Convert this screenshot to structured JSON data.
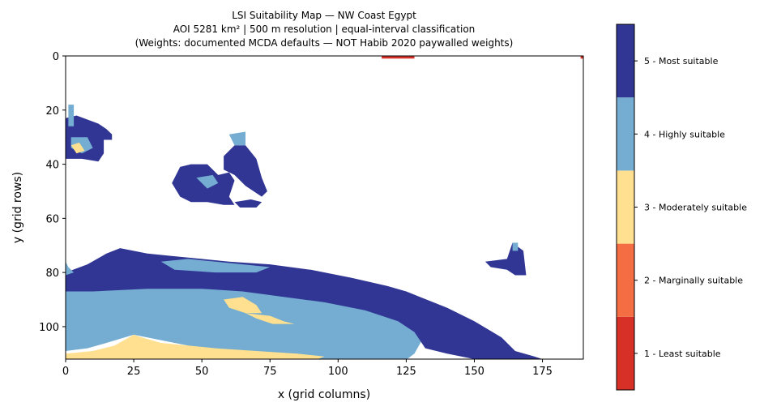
{
  "chart_data": {
    "type": "heatmap",
    "title_lines": [
      "LSI Suitability Map — NW Coast Egypt",
      "AOI 5281 km²  |  500 m resolution  |  equal-interval classification",
      "(Weights: documented MCDA defaults — NOT Habib 2020 paywalled weights)"
    ],
    "xlabel": "x (grid columns)",
    "ylabel": "y (grid rows)",
    "xlim": [
      0,
      190
    ],
    "ylim": [
      112,
      0
    ],
    "x_ticks": [
      0,
      25,
      50,
      75,
      100,
      125,
      150,
      175
    ],
    "y_ticks": [
      0,
      20,
      40,
      60,
      80,
      100
    ],
    "grid": false,
    "legend_position": "right colorbar",
    "classes": [
      {
        "value": 1,
        "label": "1 - Least suitable",
        "color": "#d73027"
      },
      {
        "value": 2,
        "label": "2 - Marginally suitable",
        "color": "#f46d43"
      },
      {
        "value": 3,
        "label": "3 - Moderately suitable",
        "color": "#fee090"
      },
      {
        "value": 4,
        "label": "4 - Highly suitable",
        "color": "#74add1"
      },
      {
        "value": 5,
        "label": "5 - Most suitable",
        "color": "#313695"
      }
    ],
    "regions": [
      {
        "class": 4,
        "polygon": [
          [
            0,
            87
          ],
          [
            8,
            86
          ],
          [
            25,
            85
          ],
          [
            45,
            84
          ],
          [
            60,
            85
          ],
          [
            75,
            86
          ],
          [
            90,
            87
          ],
          [
            105,
            89
          ],
          [
            118,
            92
          ],
          [
            125,
            96
          ],
          [
            130,
            99
          ],
          [
            133,
            101
          ],
          [
            128,
            110
          ],
          [
            124,
            113
          ],
          [
            110,
            113
          ],
          [
            95,
            113
          ],
          [
            80,
            112
          ],
          [
            65,
            110
          ],
          [
            50,
            108
          ],
          [
            40,
            106
          ],
          [
            30,
            104
          ],
          [
            25,
            103
          ],
          [
            15,
            106
          ],
          [
            8,
            108
          ],
          [
            0,
            109
          ]
        ]
      },
      {
        "class": 5,
        "polygon": [
          [
            0,
            80
          ],
          [
            8,
            77
          ],
          [
            15,
            73
          ],
          [
            20,
            71
          ],
          [
            30,
            73
          ],
          [
            40,
            74
          ],
          [
            50,
            75
          ],
          [
            60,
            76
          ],
          [
            75,
            77
          ],
          [
            90,
            79
          ],
          [
            105,
            82
          ],
          [
            118,
            85
          ],
          [
            125,
            87
          ],
          [
            130,
            89
          ],
          [
            140,
            93
          ],
          [
            150,
            98
          ],
          [
            160,
            104
          ],
          [
            165,
            109
          ],
          [
            172,
            111
          ],
          [
            175,
            112
          ],
          [
            150,
            112
          ],
          [
            140,
            110
          ],
          [
            132,
            108
          ],
          [
            128,
            102
          ],
          [
            122,
            98
          ],
          [
            110,
            94
          ],
          [
            95,
            91
          ],
          [
            80,
            89
          ],
          [
            65,
            87
          ],
          [
            50,
            86
          ],
          [
            30,
            86
          ],
          [
            10,
            87
          ],
          [
            0,
            87
          ]
        ]
      },
      {
        "class": 4,
        "polygon": [
          [
            35,
            76
          ],
          [
            45,
            75
          ],
          [
            55,
            76
          ],
          [
            65,
            77
          ],
          [
            75,
            78
          ],
          [
            70,
            80
          ],
          [
            55,
            80
          ],
          [
            40,
            79
          ]
        ]
      },
      {
        "class": 4,
        "polygon": [
          [
            0,
            76
          ],
          [
            1,
            78
          ],
          [
            3,
            80
          ],
          [
            0,
            81
          ]
        ]
      },
      {
        "class": 3,
        "polygon": [
          [
            0,
            110
          ],
          [
            10,
            109
          ],
          [
            18,
            107
          ],
          [
            25,
            103
          ],
          [
            28,
            104
          ],
          [
            35,
            106
          ],
          [
            45,
            107
          ],
          [
            55,
            108
          ],
          [
            70,
            109
          ],
          [
            85,
            110
          ],
          [
            95,
            111
          ],
          [
            90,
            113
          ],
          [
            0,
            113
          ]
        ]
      },
      {
        "class": 3,
        "polygon": [
          [
            58,
            90
          ],
          [
            65,
            89
          ],
          [
            70,
            92
          ],
          [
            72,
            95
          ],
          [
            66,
            95
          ],
          [
            60,
            93
          ]
        ]
      },
      {
        "class": 3,
        "polygon": [
          [
            66,
            95
          ],
          [
            75,
            96
          ],
          [
            80,
            98
          ],
          [
            84,
            99
          ],
          [
            76,
            99
          ],
          [
            70,
            97
          ]
        ]
      },
      {
        "class": 5,
        "polygon": [
          [
            0,
            23
          ],
          [
            4,
            22
          ],
          [
            12,
            25
          ],
          [
            15,
            27
          ],
          [
            17,
            29
          ],
          [
            17,
            31
          ],
          [
            14,
            31
          ],
          [
            14,
            36
          ],
          [
            12,
            39
          ],
          [
            6,
            38
          ],
          [
            0,
            38
          ]
        ]
      },
      {
        "class": 4,
        "polygon": [
          [
            1,
            18
          ],
          [
            3,
            18
          ],
          [
            3,
            26
          ],
          [
            1,
            26
          ]
        ]
      },
      {
        "class": 4,
        "polygon": [
          [
            2,
            30
          ],
          [
            8,
            30
          ],
          [
            10,
            34
          ],
          [
            6,
            36
          ],
          [
            2,
            34
          ]
        ]
      },
      {
        "class": 3,
        "polygon": [
          [
            2,
            33
          ],
          [
            5,
            32
          ],
          [
            7,
            35
          ],
          [
            4,
            36
          ]
        ]
      },
      {
        "class": 5,
        "polygon": [
          [
            39,
            47
          ],
          [
            42,
            41
          ],
          [
            46,
            40
          ],
          [
            52,
            40
          ],
          [
            56,
            44
          ],
          [
            60,
            43
          ],
          [
            62,
            46
          ],
          [
            60,
            52
          ],
          [
            62,
            55
          ],
          [
            58,
            55
          ],
          [
            52,
            54
          ],
          [
            46,
            54
          ],
          [
            42,
            52
          ]
        ]
      },
      {
        "class": 5,
        "polygon": [
          [
            58,
            37
          ],
          [
            62,
            33
          ],
          [
            66,
            33
          ],
          [
            70,
            38
          ],
          [
            72,
            45
          ],
          [
            74,
            50
          ],
          [
            72,
            52
          ],
          [
            66,
            48
          ],
          [
            62,
            44
          ],
          [
            58,
            42
          ]
        ]
      },
      {
        "class": 4,
        "polygon": [
          [
            60,
            29
          ],
          [
            66,
            28
          ],
          [
            66,
            33
          ],
          [
            62,
            33
          ]
        ]
      },
      {
        "class": 4,
        "polygon": [
          [
            48,
            45
          ],
          [
            54,
            44
          ],
          [
            56,
            47
          ],
          [
            52,
            49
          ]
        ]
      },
      {
        "class": 5,
        "polygon": [
          [
            62,
            54
          ],
          [
            68,
            53
          ],
          [
            72,
            54
          ],
          [
            70,
            56
          ],
          [
            64,
            56
          ]
        ]
      },
      {
        "class": 5,
        "polygon": [
          [
            154,
            76
          ],
          [
            162,
            75
          ],
          [
            164,
            69
          ],
          [
            168,
            72
          ],
          [
            169,
            81
          ],
          [
            165,
            81
          ],
          [
            162,
            79
          ],
          [
            156,
            78
          ]
        ]
      },
      {
        "class": 4,
        "polygon": [
          [
            164,
            69
          ],
          [
            166,
            69
          ],
          [
            166,
            72
          ],
          [
            164,
            72
          ]
        ]
      },
      {
        "class": 1,
        "polygon": [
          [
            116,
            0
          ],
          [
            128,
            0
          ],
          [
            128,
            1
          ],
          [
            116,
            1
          ]
        ]
      },
      {
        "class": 1,
        "polygon": [
          [
            189,
            0
          ],
          [
            190,
            0
          ],
          [
            190,
            1
          ],
          [
            189,
            1
          ]
        ]
      }
    ]
  }
}
